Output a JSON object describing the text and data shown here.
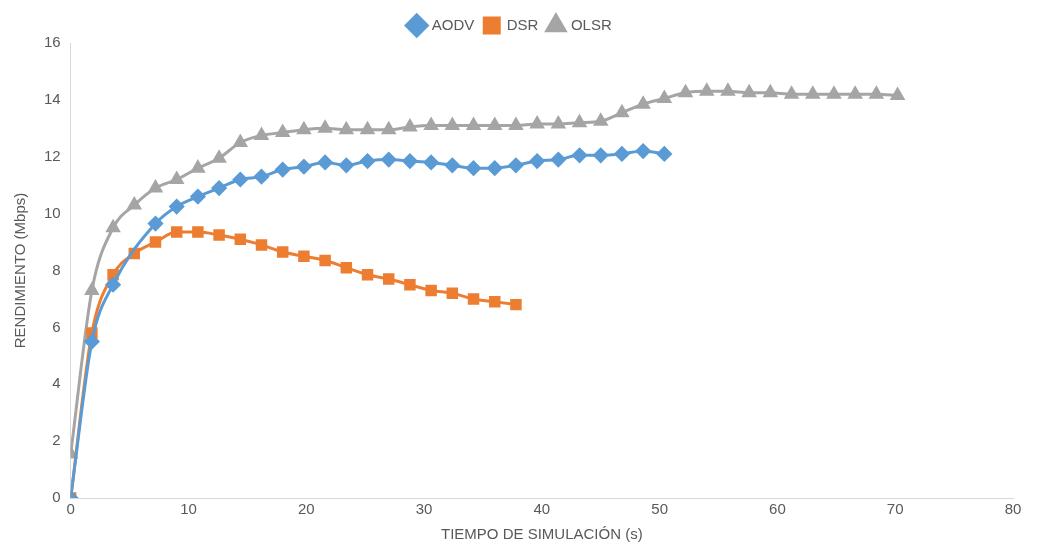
{
  "chart_data": {
    "type": "line",
    "xlabel": "TIEMPO DE SIMULACIÓN (s)",
    "ylabel": "RENDIMIENTO (Mbps)",
    "xlim": [
      0,
      80
    ],
    "xticks": [
      0,
      10,
      20,
      30,
      40,
      50,
      60,
      70,
      80
    ],
    "ylim": [
      0,
      16
    ],
    "yticks": [
      0,
      2,
      4,
      6,
      8,
      10,
      12,
      14,
      16
    ],
    "grid": false,
    "legend": "top",
    "line_style": "solid",
    "series": [
      {
        "name": "AODV",
        "color": "#5b9bd5",
        "marker": "diamond",
        "x": [
          0,
          1.8,
          3.6,
          5.4,
          7.2,
          9,
          10.8,
          12.6,
          14.4,
          16.2,
          18,
          19.8,
          21.6,
          23.4,
          25.2,
          27,
          28.8,
          30.6,
          32.4,
          34.2,
          36,
          37.8,
          39.6,
          41.4,
          43.2,
          45,
          46.8,
          48.6,
          50.4
        ],
        "values": [
          0,
          5.5,
          7.5,
          null,
          9.65,
          10.25,
          10.6,
          10.9,
          11.2,
          11.3,
          11.55,
          11.65,
          11.8,
          11.7,
          11.85,
          11.9,
          11.85,
          11.8,
          11.7,
          11.6,
          11.6,
          11.7,
          11.85,
          11.9,
          12.05,
          12.05,
          12.1,
          12.2,
          12.1
        ]
      },
      {
        "name": "DSR",
        "color": "#ed7d31",
        "marker": "square",
        "x": [
          0,
          1.8,
          3.6,
          5.4,
          7.2,
          9,
          10.8,
          12.6,
          14.4,
          16.2,
          18,
          19.8,
          21.6,
          23.4,
          25.2,
          27,
          28.8,
          30.6,
          32.4,
          34.2,
          36,
          37.8
        ],
        "values": [
          0,
          5.8,
          7.85,
          8.6,
          9.0,
          9.35,
          9.35,
          9.25,
          9.1,
          8.9,
          8.65,
          8.5,
          8.35,
          8.1,
          7.85,
          7.7,
          7.5,
          7.3,
          7.2,
          7.0,
          6.9,
          6.8
        ]
      },
      {
        "name": "OLSR",
        "color": "#a5a5a5",
        "marker": "triangle",
        "x": [
          0,
          1.8,
          3.6,
          5.4,
          7.2,
          9,
          10.8,
          12.6,
          14.4,
          16.2,
          18,
          19.8,
          21.6,
          23.4,
          25.2,
          27,
          28.8,
          30.6,
          32.4,
          34.2,
          36,
          37.8,
          39.6,
          41.4,
          43.2,
          45,
          46.8,
          48.6,
          50.4,
          52.2,
          54,
          55.8,
          57.6,
          59.4,
          61.2,
          63,
          64.8,
          66.6,
          68.4,
          70.2
        ],
        "values": [
          1.55,
          7.3,
          9.5,
          10.3,
          10.9,
          11.2,
          11.6,
          11.95,
          12.5,
          12.75,
          12.85,
          12.95,
          13.0,
          12.95,
          12.95,
          12.95,
          13.05,
          13.1,
          13.1,
          13.1,
          13.1,
          13.1,
          13.15,
          13.15,
          13.2,
          13.25,
          13.55,
          13.85,
          14.05,
          14.25,
          14.3,
          14.3,
          14.25,
          14.25,
          14.2,
          14.2,
          14.2,
          14.2,
          14.2,
          14.15
        ]
      }
    ]
  }
}
